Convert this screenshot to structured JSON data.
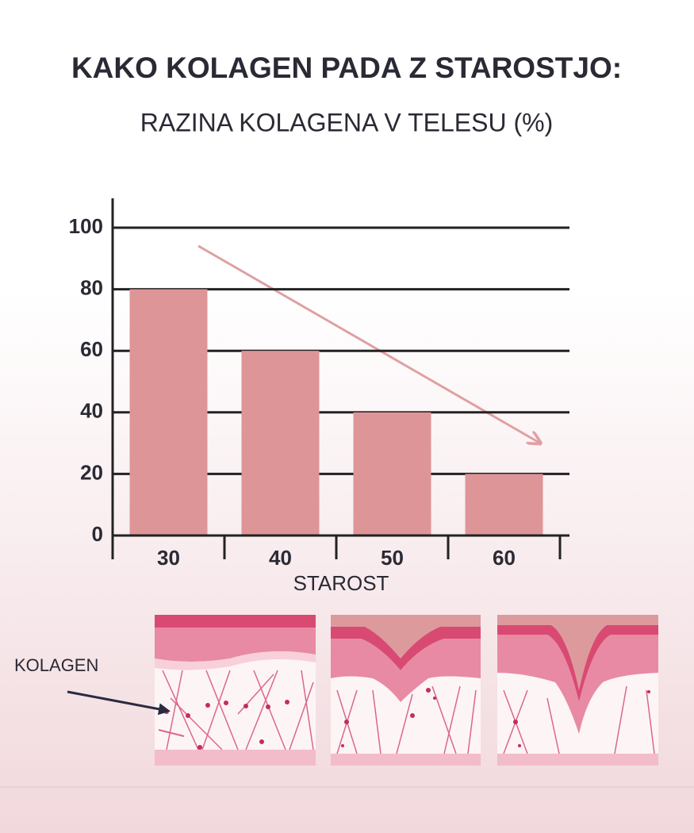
{
  "chart_data": {
    "type": "bar",
    "title": "KAKO KOLAGEN PADA Z STAROSTJO:",
    "subtitle": "RAZINA KOLAGENA V TELESU (%)",
    "categories": [
      "30",
      "40",
      "50",
      "60"
    ],
    "values": [
      80,
      60,
      40,
      20
    ],
    "color": "#de9598",
    "ylim": [
      0,
      100
    ],
    "yticks": [
      0,
      20,
      40,
      60,
      80,
      100
    ],
    "grid": true,
    "x_label": "STAROST",
    "annotation": "KOLAGEN"
  }
}
